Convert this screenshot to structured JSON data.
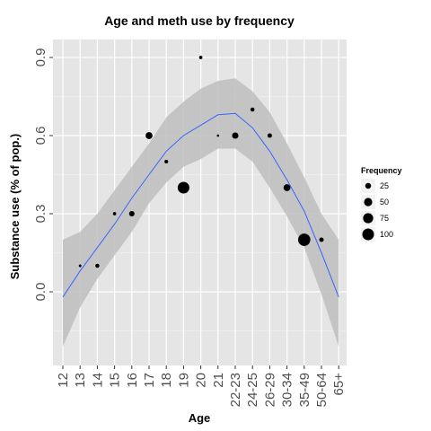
{
  "chart_data": {
    "type": "scatter",
    "title": "Age and meth use by frequency",
    "xlabel": "Age",
    "ylabel": "Substance use (% of pop.)",
    "categories": [
      "12",
      "13",
      "14",
      "15",
      "16",
      "17",
      "18",
      "19",
      "20",
      "21",
      "22-23",
      "24-25",
      "26-29",
      "30-34",
      "35-49",
      "50-64",
      "65+"
    ],
    "y_ticks": [
      "0.0",
      "0.3",
      "0.6",
      "0.9"
    ],
    "y_tick_values": [
      0.0,
      0.3,
      0.6,
      0.9
    ],
    "ylim": [
      -0.2,
      1.0
    ],
    "grid": true,
    "points": [
      {
        "category": "13",
        "y": 0.1,
        "frequency": 5
      },
      {
        "category": "14",
        "y": 0.1,
        "frequency": 12
      },
      {
        "category": "15",
        "y": 0.3,
        "frequency": 8
      },
      {
        "category": "16",
        "y": 0.3,
        "frequency": 22
      },
      {
        "category": "17",
        "y": 0.6,
        "frequency": 35
      },
      {
        "category": "18",
        "y": 0.5,
        "frequency": 10
      },
      {
        "category": "19",
        "y": 0.4,
        "frequency": 100
      },
      {
        "category": "20",
        "y": 0.9,
        "frequency": 8
      },
      {
        "category": "21",
        "y": 0.6,
        "frequency": 4
      },
      {
        "category": "22-23",
        "y": 0.6,
        "frequency": 30
      },
      {
        "category": "24-25",
        "y": 0.7,
        "frequency": 12
      },
      {
        "category": "26-29",
        "y": 0.6,
        "frequency": 15
      },
      {
        "category": "30-34",
        "y": 0.4,
        "frequency": 35
      },
      {
        "category": "35-49",
        "y": 0.2,
        "frequency": 110
      },
      {
        "category": "50-64",
        "y": 0.2,
        "frequency": 15
      }
    ],
    "smooth_line": [
      -0.02,
      0.08,
      0.17,
      0.26,
      0.36,
      0.45,
      0.54,
      0.6,
      0.64,
      0.68,
      0.685,
      0.63,
      0.54,
      0.43,
      0.31,
      0.15,
      -0.02
    ],
    "band_upper": [
      0.2,
      0.23,
      0.3,
      0.39,
      0.48,
      0.57,
      0.67,
      0.73,
      0.78,
      0.81,
      0.82,
      0.77,
      0.69,
      0.57,
      0.44,
      0.3,
      0.2
    ],
    "band_lower": [
      -0.21,
      -0.06,
      0.05,
      0.14,
      0.23,
      0.34,
      0.42,
      0.48,
      0.51,
      0.55,
      0.55,
      0.5,
      0.4,
      0.29,
      0.17,
      -0.01,
      -0.21
    ],
    "legend": {
      "title": "Frequency",
      "position": "right",
      "entries": [
        {
          "label": "25",
          "value": 25
        },
        {
          "label": "50",
          "value": 50
        },
        {
          "label": "75",
          "value": 75
        },
        {
          "label": "100",
          "value": 100
        }
      ]
    },
    "colors": {
      "panel": "#e5e5e5",
      "grid": "#ffffff",
      "band": "#bebebe",
      "line": "#3366ff",
      "point": "#000000"
    }
  }
}
